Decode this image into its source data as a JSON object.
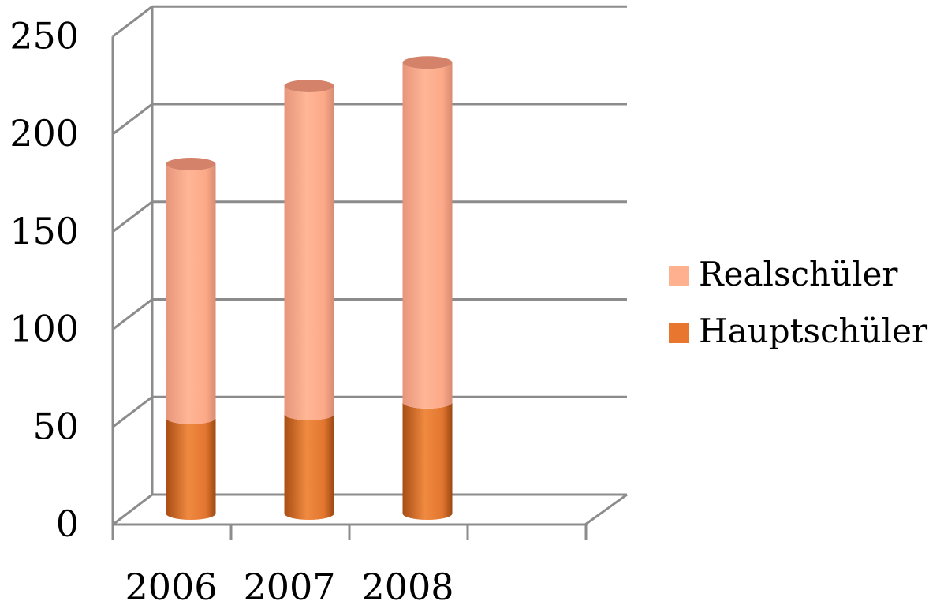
{
  "chart_data": {
    "type": "bar",
    "stacked": true,
    "style": "3d-cylinder",
    "categories": [
      "2006",
      "2007",
      "2008"
    ],
    "series": [
      {
        "name": "Hauptschüler",
        "values": [
          49,
          51,
          57
        ],
        "color": "#E8762E",
        "top_color": "#C8693E"
      },
      {
        "name": "Realschüler",
        "values": [
          130,
          168,
          174
        ],
        "color": "#FFB08F",
        "top_color": "#D4826A"
      }
    ],
    "y_ticks": [
      "0",
      "50",
      "100",
      "150",
      "200",
      "250"
    ],
    "ylim": [
      0,
      250
    ],
    "grid": true,
    "legend_position": "right"
  }
}
